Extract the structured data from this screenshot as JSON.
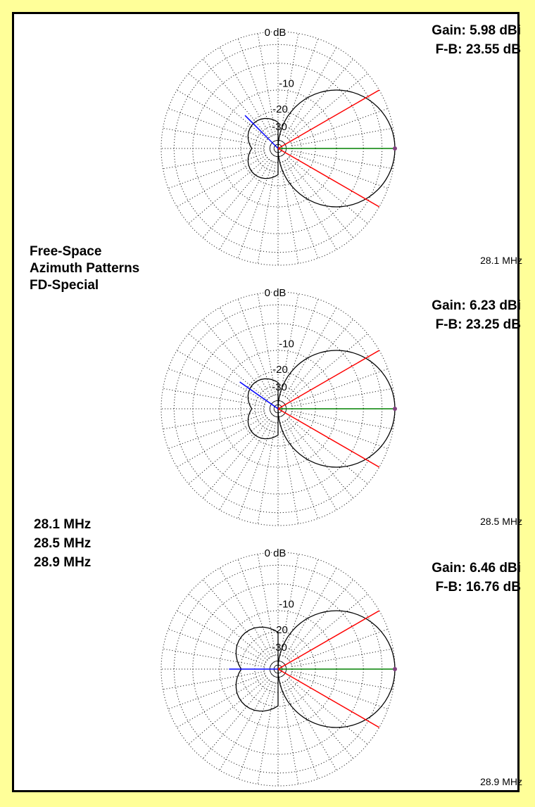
{
  "page": {
    "background_color": "#ffff99",
    "frame_color": "#000000"
  },
  "title_block": {
    "line1": "Free-Space",
    "line2": "Azimuth Patterns",
    "line3": "FD-Special"
  },
  "frequency_list": [
    "28.1 MHz",
    "28.5 MHz",
    "28.9 MHz"
  ],
  "chart_data": [
    {
      "type": "polar",
      "frequency_label": "28.1 MHz",
      "gain_label": "Gain: 5.98 dBi",
      "fb_label": "F-B: 23.55 dB",
      "radial_tick_labels": [
        "0 dB",
        "-10",
        "-20",
        "-30"
      ],
      "gain_dbi": 5.98,
      "front_to_back_db": 23.55,
      "beamwidth_lines_deg": [
        30,
        -30
      ],
      "max_gain_direction_deg": 0,
      "back_lobe_direction_deg": 135,
      "colors": {
        "main_lobe": "#008000",
        "beamwidth": "#ff0000",
        "back_lobe": "#0000ff"
      }
    },
    {
      "type": "polar",
      "frequency_label": "28.5 MHz",
      "gain_label": "Gain: 6.23 dBi",
      "fb_label": "F-B: 23.25 dB",
      "radial_tick_labels": [
        "0 dB",
        "-10",
        "-20",
        "-30"
      ],
      "gain_dbi": 6.23,
      "front_to_back_db": 23.25,
      "beamwidth_lines_deg": [
        30,
        -30
      ],
      "max_gain_direction_deg": 0,
      "back_lobe_direction_deg": 145,
      "colors": {
        "main_lobe": "#008000",
        "beamwidth": "#ff0000",
        "back_lobe": "#0000ff"
      }
    },
    {
      "type": "polar",
      "frequency_label": "28.9 MHz",
      "gain_label": "Gain: 6.46 dBi",
      "fb_label": "F-B: 16.76 dB",
      "radial_tick_labels": [
        "0 dB",
        "-10",
        "-20",
        "-30"
      ],
      "gain_dbi": 6.46,
      "front_to_back_db": 16.76,
      "beamwidth_lines_deg": [
        30,
        -30
      ],
      "max_gain_direction_deg": 0,
      "back_lobe_direction_deg": 180,
      "colors": {
        "main_lobe": "#008000",
        "beamwidth": "#ff0000",
        "back_lobe": "#0000ff"
      }
    }
  ]
}
